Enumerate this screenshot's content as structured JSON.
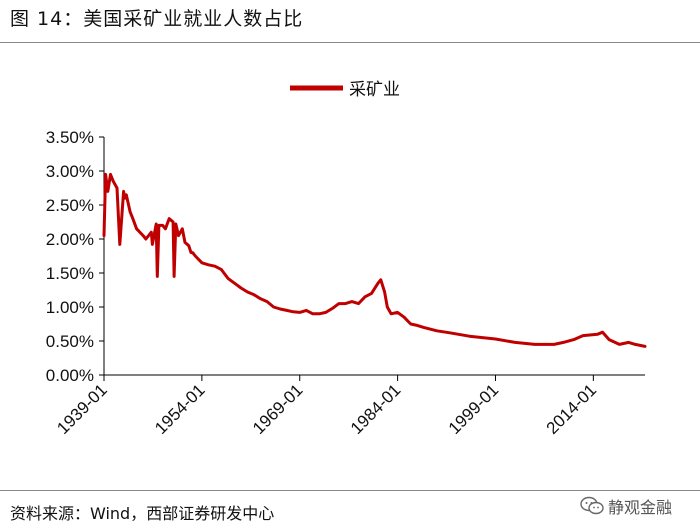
{
  "header": {
    "title": "图 14：美国采矿业就业人数占比"
  },
  "footer": {
    "source": "资料来源：Wind，西部证券研发中心",
    "watermark": "静观金融"
  },
  "colors": {
    "series": "#c00000",
    "axis": "#000000",
    "rule": "#8a8a8a"
  },
  "icons": {
    "watermark": "wechat-icon"
  },
  "chart_data": {
    "type": "line",
    "title": "",
    "xlabel": "",
    "ylabel": "",
    "legend_position": "top-center",
    "grid": false,
    "ylim": [
      0,
      3.5
    ],
    "xlim": [
      "1939-01",
      "2021-12"
    ],
    "x_ticks": [
      "1939-01",
      "1954-01",
      "1969-01",
      "1984-01",
      "1999-01",
      "2014-01"
    ],
    "y_ticks": [
      "0.00%",
      "0.50%",
      "1.00%",
      "1.50%",
      "2.00%",
      "2.50%",
      "3.00%",
      "3.50%"
    ],
    "series": [
      {
        "name": "采矿业",
        "x": [
          "1939-01",
          "1939-04",
          "1939-08",
          "1940-01",
          "1940-06",
          "1941-01",
          "1941-06",
          "1942-01",
          "1942-03",
          "1942-06",
          "1943-01",
          "1943-06",
          "1944-01",
          "1945-01",
          "1945-06",
          "1946-04",
          "1946-06",
          "1947-01",
          "1947-03",
          "1947-06",
          "1948-01",
          "1948-06",
          "1949-01",
          "1949-08",
          "1949-10",
          "1950-01",
          "1950-06",
          "1951-01",
          "1951-06",
          "1952-01",
          "1952-05",
          "1952-08",
          "1953-01",
          "1954-01",
          "1955-01",
          "1956-01",
          "1957-01",
          "1958-01",
          "1959-06",
          "1960-01",
          "1961-01",
          "1962-01",
          "1963-01",
          "1964-01",
          "1965-01",
          "1966-01",
          "1967-01",
          "1968-01",
          "1969-01",
          "1970-01",
          "1971-01",
          "1972-01",
          "1973-01",
          "1974-01",
          "1975-01",
          "1976-01",
          "1977-01",
          "1978-01",
          "1979-01",
          "1980-01",
          "1981-01",
          "1981-06",
          "1982-01",
          "1982-06",
          "1983-01",
          "1984-01",
          "1985-01",
          "1986-01",
          "1987-01",
          "1988-01",
          "1990-01",
          "1992-01",
          "1995-01",
          "1999-01",
          "2002-01",
          "2005-01",
          "2008-01",
          "2009-06",
          "2011-01",
          "2012-06",
          "2014-09",
          "2015-06",
          "2016-06",
          "2018-01",
          "2019-06",
          "2020-06",
          "2021-12"
        ],
        "values": [
          2.05,
          2.95,
          2.7,
          2.95,
          2.85,
          2.75,
          1.92,
          2.7,
          2.6,
          2.65,
          2.4,
          2.3,
          2.15,
          2.05,
          2.0,
          2.1,
          1.92,
          2.22,
          1.45,
          2.2,
          2.2,
          2.15,
          2.3,
          2.25,
          1.45,
          2.22,
          2.05,
          2.15,
          1.95,
          1.9,
          1.8,
          1.8,
          1.75,
          1.65,
          1.62,
          1.6,
          1.55,
          1.42,
          1.32,
          1.28,
          1.22,
          1.18,
          1.12,
          1.08,
          1.0,
          0.97,
          0.95,
          0.93,
          0.92,
          0.95,
          0.9,
          0.9,
          0.92,
          0.98,
          1.05,
          1.05,
          1.08,
          1.05,
          1.15,
          1.2,
          1.35,
          1.4,
          1.22,
          1.0,
          0.9,
          0.92,
          0.85,
          0.75,
          0.73,
          0.7,
          0.65,
          0.62,
          0.57,
          0.53,
          0.48,
          0.45,
          0.45,
          0.48,
          0.52,
          0.58,
          0.6,
          0.63,
          0.52,
          0.45,
          0.48,
          0.45,
          0.42
        ]
      }
    ]
  }
}
